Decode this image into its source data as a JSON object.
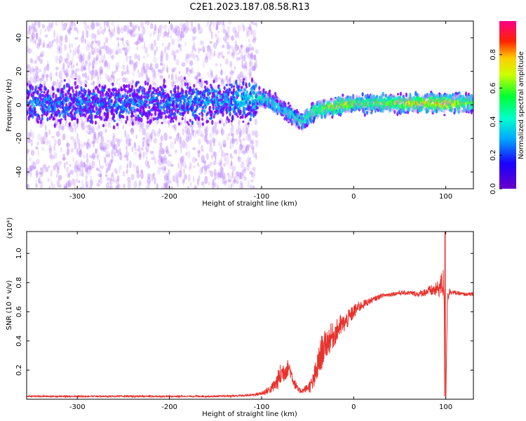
{
  "title": "C2E1.2023.187.08.58.R13",
  "colors": {
    "spectrogram_core": "#7a00ff",
    "spectrogram_halo": "#b57cff",
    "snr_line": "#e8322d",
    "axis": "#000000"
  },
  "chart_data": [
    {
      "type": "heatmap",
      "title": "C2E1.2023.187.08.58.R13",
      "xlabel": "Height of straight line (km)",
      "ylabel": "Frequency (Hz)",
      "xlim": [
        -355,
        130
      ],
      "ylim": [
        -50,
        50
      ],
      "xticks": [
        -300,
        -200,
        -100,
        0,
        100
      ],
      "yticks": [
        -40,
        -20,
        0,
        20,
        40
      ],
      "grid": false,
      "colorbar": {
        "label": "Normalized spectral amplitude",
        "range": [
          0,
          1
        ],
        "ticks": [
          "0.0",
          "0.2",
          "0.4",
          "0.6",
          "0.8"
        ],
        "colormap": "rainbow (purple-blue-cyan-green-yellow-red-magenta)"
      },
      "ridge": {
        "description": "signal frequency vs height",
        "x": [
          -355,
          -300,
          -200,
          -150,
          -110,
          -100,
          -90,
          -80,
          -70,
          -60,
          -55,
          -50,
          -40,
          -30,
          -20,
          -10,
          0,
          20,
          60,
          100,
          130
        ],
        "y": [
          1,
          1,
          1,
          2,
          3,
          4,
          2,
          -2,
          -5,
          -9,
          -10,
          -7,
          -3,
          -2,
          -1,
          0,
          1,
          1,
          1,
          1,
          1
        ],
        "amplitude": [
          0.25,
          0.25,
          0.25,
          0.28,
          0.35,
          0.4,
          0.4,
          0.35,
          0.4,
          0.4,
          0.45,
          0.5,
          0.55,
          0.6,
          0.65,
          0.7,
          0.6,
          0.55,
          0.7,
          0.75,
          0.55
        ]
      }
    },
    {
      "type": "line",
      "xlabel": "Height of straight line (km)",
      "ylabel": "SNR (10 * v/v)",
      "y_multiplier": "(x10⁴)",
      "xlim": [
        -355,
        130
      ],
      "ylim": [
        0,
        1.15
      ],
      "xticks": [
        -300,
        -200,
        -100,
        0,
        100
      ],
      "yticks": [
        0.2,
        0.4,
        0.6,
        0.8,
        1.0
      ],
      "yticklabels": [
        "0.2",
        "0.4",
        "0.6",
        "0.8",
        "1.0"
      ],
      "grid": false,
      "series": [
        {
          "x": [
            -355,
            -300,
            -250,
            -200,
            -150,
            -120,
            -110,
            -100,
            -90,
            -85,
            -80,
            -75,
            -70,
            -65,
            -60,
            -55,
            -50,
            -45,
            -40,
            -35,
            -30,
            -25,
            -20,
            -15,
            -10,
            -5,
            0,
            5,
            10,
            20,
            30,
            40,
            50,
            60,
            70,
            80,
            90,
            95,
            98,
            100,
            102,
            105,
            110,
            120,
            130
          ],
          "y": [
            0.02,
            0.02,
            0.02,
            0.02,
            0.02,
            0.025,
            0.03,
            0.04,
            0.07,
            0.1,
            0.16,
            0.2,
            0.22,
            0.12,
            0.06,
            0.06,
            0.08,
            0.1,
            0.2,
            0.32,
            0.38,
            0.42,
            0.45,
            0.5,
            0.52,
            0.56,
            0.6,
            0.63,
            0.65,
            0.68,
            0.71,
            0.72,
            0.73,
            0.73,
            0.72,
            0.74,
            0.75,
            0.78,
            0.8,
            0.02,
            0.72,
            0.74,
            0.73,
            0.72,
            0.72
          ],
          "noise": [
            0.005,
            0.005,
            0.005,
            0.005,
            0.005,
            0.006,
            0.008,
            0.015,
            0.03,
            0.05,
            0.08,
            0.08,
            0.05,
            0.04,
            0.02,
            0.02,
            0.03,
            0.06,
            0.1,
            0.12,
            0.1,
            0.1,
            0.08,
            0.08,
            0.06,
            0.06,
            0.05,
            0.04,
            0.03,
            0.02,
            0.015,
            0.015,
            0.015,
            0.015,
            0.02,
            0.03,
            0.05,
            0.08,
            0.12,
            0.0,
            0.06,
            0.02,
            0.015,
            0.012,
            0.012
          ]
        }
      ]
    }
  ]
}
